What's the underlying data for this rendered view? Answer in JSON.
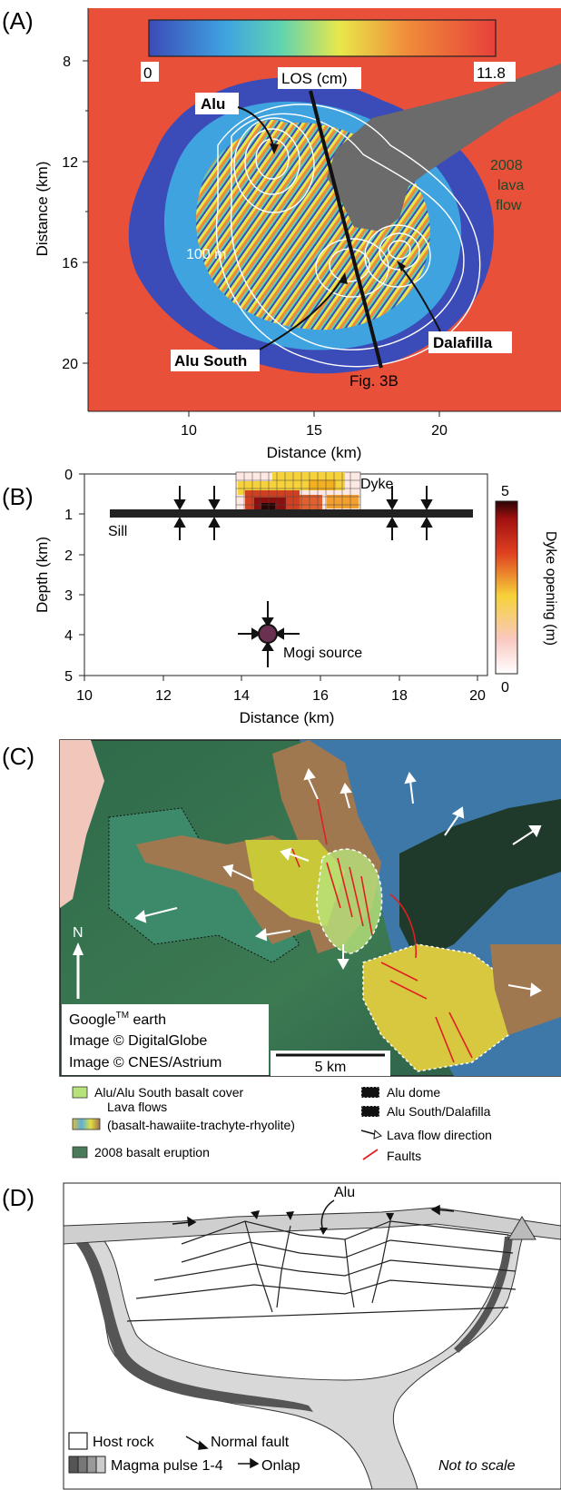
{
  "panel_a": {
    "label": "(A)",
    "colorbar_min": "0",
    "colorbar_max": "11.8",
    "los_label": "LOS (cm)",
    "alu_label": "Alu",
    "alu_south_label": "Alu South",
    "dalafilla_label": "Dalafilla",
    "contour_label": "100 m",
    "lava_flow_label": [
      "2008",
      "lava",
      "flow"
    ],
    "profile_label": "Fig. 3B",
    "y_ticks": [
      "8",
      "12",
      "16",
      "20"
    ],
    "x_ticks": [
      "10",
      "15",
      "20"
    ],
    "xlabel": "Distance (km)",
    "ylabel": "Distance (km)"
  },
  "panel_b": {
    "label": "(B)",
    "sill_label": "Sill",
    "dyke_label": "Dyke",
    "mogi_label": "Mogi source",
    "colorbar_title": "Dyke opening (m)",
    "colorbar_max": "5",
    "colorbar_min": "0",
    "y_ticks": [
      "0",
      "1",
      "2",
      "3",
      "4",
      "5"
    ],
    "x_ticks": [
      "10",
      "12",
      "14",
      "16",
      "18",
      "20"
    ],
    "xlabel": "Distance (km)",
    "ylabel": "Depth (km)"
  },
  "panel_c": {
    "label": "(C)",
    "north_label": "N",
    "credit_line1": "Google",
    "credit_tm": "TM",
    "credit_line1b": " earth",
    "credit_line2": "Image © DigitalGlobe",
    "credit_line3": "Image © CNES/Astrium",
    "scale_label": "5 km",
    "legend": {
      "basalt_cover": "Alu/Alu South basalt cover",
      "lava_flows_1": "Lava flows",
      "lava_flows_2": "(basalt-hawaiite-trachyte-rhyolite)",
      "eruption_2008": "2008 basalt eruption",
      "alu_dome": "Alu dome",
      "alu_south_dalafilla": "Alu South/Dalafilla",
      "flow_direction": "Lava flow direction",
      "faults": "Faults"
    }
  },
  "panel_d": {
    "label": "(D)",
    "alu_label": "Alu",
    "legend_host_rock": "Host rock",
    "legend_normal_fault": "Normal fault",
    "legend_magma": "Magma pulse 1-4",
    "legend_onlap": "Onlap",
    "not_to_scale": "Not to scale"
  },
  "colors": {
    "interferogram": [
      "#3b4bb8",
      "#3fa3e0",
      "#5fd3b0",
      "#e8e84a",
      "#f08a3a",
      "#e8403a"
    ],
    "lava_2008": "#6b6b6b",
    "dyke_scale": [
      "#fbe6e6",
      "#f6d23a",
      "#e8602a",
      "#c01818",
      "#3a0606"
    ],
    "basalt_cover": "#b8e27a",
    "eruption_2008": "#4a7a5a",
    "fault": "#e02020"
  }
}
